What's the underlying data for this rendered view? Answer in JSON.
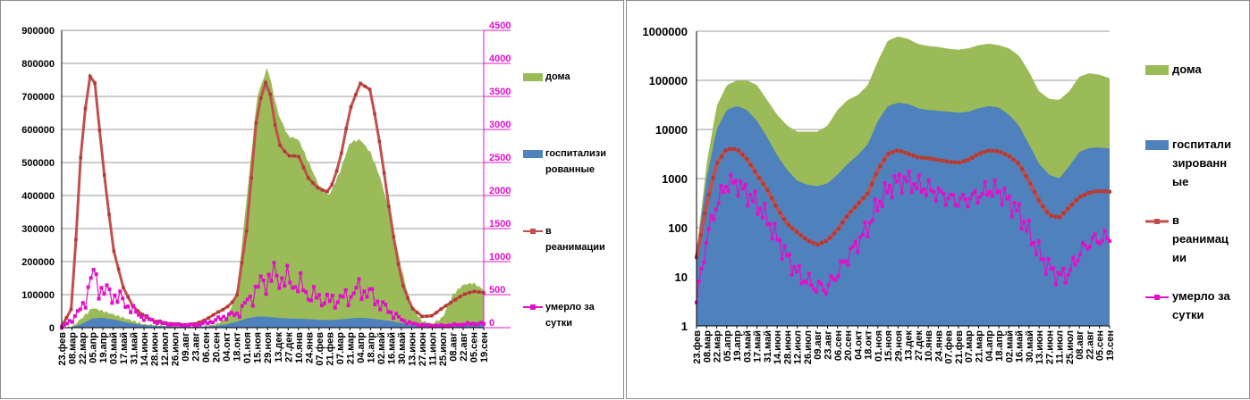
{
  "chart_data": [
    {
      "type": "area",
      "title": "",
      "x_labels": [
        "23.фев",
        "08.мар",
        "22.мар",
        "05.апр",
        "19.апр",
        "03.май",
        "17.май",
        "31.май",
        "14.июн",
        "28.июн",
        "12.июл",
        "26.июл",
        "09.авг",
        "23.авг",
        "06.сен",
        "20.сен",
        "04.окт",
        "18.окт",
        "01.ноя",
        "15.ноя",
        "29.ноя",
        "13.дек",
        "27.дек",
        "10.янв",
        "24.янв",
        "07.фев",
        "21.фев",
        "07.мар",
        "21.мар",
        "04.апр",
        "18.апр",
        "02.май",
        "16.май",
        "30.май",
        "13.июн",
        "27.июн",
        "11.июл",
        "25.июл",
        "08.авг",
        "22.авг",
        "05.сен",
        "19.сен"
      ],
      "left_axis": {
        "min": 0,
        "max": 900000,
        "ticks": [
          "0",
          "100000",
          "200000",
          "300000",
          "400000",
          "500000",
          "600000",
          "700000",
          "800000",
          "900000"
        ]
      },
      "right_axis": {
        "min": 0,
        "max": 4500,
        "ticks": [
          "0",
          "500",
          "1000",
          "1500",
          "2000",
          "2500",
          "3000",
          "3500",
          "4000",
          "4500"
        ]
      },
      "series": [
        {
          "name": "дома",
          "axis": "left",
          "color": "#9bbb59",
          "values": [
            0,
            2000,
            30000,
            60000,
            50000,
            40000,
            30000,
            20000,
            10000,
            8000,
            6000,
            5000,
            4000,
            4000,
            5000,
            10000,
            30000,
            100000,
            400000,
            700000,
            790000,
            650000,
            580000,
            570000,
            500000,
            430000,
            400000,
            470000,
            560000,
            570000,
            530000,
            450000,
            330000,
            180000,
            60000,
            20000,
            12000,
            30000,
            100000,
            130000,
            135000,
            115000
          ]
        },
        {
          "name": "госпитализированные",
          "axis": "left",
          "color": "#4f81bd",
          "values": [
            0,
            2000,
            12000,
            28000,
            30000,
            25000,
            18000,
            12000,
            8000,
            6000,
            4000,
            3000,
            2500,
            3000,
            4000,
            6000,
            10000,
            18000,
            28000,
            34000,
            33000,
            30000,
            28000,
            27000,
            26000,
            24000,
            23000,
            25000,
            28000,
            30000,
            28000,
            24000,
            20000,
            14000,
            8000,
            4000,
            3000,
            5000,
            10000,
            15000,
            17000,
            17000
          ]
        },
        {
          "name": "в реанимации",
          "axis": "right",
          "color": "#c0504d",
          "values": [
            20,
            300,
            3000,
            4050,
            2500,
            1200,
            600,
            300,
            180,
            100,
            70,
            55,
            45,
            60,
            120,
            220,
            300,
            450,
            1500,
            3300,
            3800,
            2800,
            2600,
            2600,
            2250,
            2100,
            2050,
            2500,
            3300,
            3700,
            3600,
            2700,
            1600,
            700,
            300,
            170,
            180,
            300,
            400,
            500,
            550,
            530
          ]
        },
        {
          "name": "умерло за сутки",
          "axis": "right",
          "color": "#e010c8",
          "values": [
            5,
            120,
            300,
            800,
            550,
            500,
            400,
            250,
            150,
            100,
            60,
            45,
            40,
            40,
            70,
            110,
            180,
            200,
            380,
            600,
            750,
            780,
            700,
            650,
            500,
            450,
            400,
            430,
            480,
            600,
            500,
            350,
            230,
            120,
            60,
            40,
            30,
            30,
            40,
            50,
            60,
            60
          ]
        }
      ],
      "legend": [
        "дома",
        "госпитали зи рованные",
        "в реанимации",
        "умерло за сутки"
      ]
    },
    {
      "type": "area",
      "scale": "log",
      "title": "",
      "x_labels": [
        "23.фев",
        "08.мар",
        "22.мар",
        "05.апр",
        "19.апр",
        "03.май",
        "17.май",
        "31.май",
        "14.июн",
        "28.июн",
        "12.июл",
        "26.июл",
        "09.авг",
        "23.авг",
        "06.сен",
        "20.сен",
        "04.окт",
        "18.окт",
        "01.ноя",
        "15.ноя",
        "29.ноя",
        "13.дек",
        "27.дек",
        "10.янв",
        "24.янв",
        "07.фев",
        "21.фев",
        "07.мар",
        "21.мар",
        "04.апр",
        "18.апр",
        "02.май",
        "16.май",
        "30.май",
        "13.июн",
        "27.июн",
        "11.июл",
        "25.июл",
        "08.авг",
        "22.авг",
        "05.сен",
        "19.сен"
      ],
      "y_axis": {
        "min": 1,
        "max": 1000000,
        "ticks": [
          "1",
          "10",
          "100",
          "1000",
          "10000",
          "100000",
          "1000000"
        ]
      },
      "series": [
        {
          "name": "дома",
          "color": "#9bbb59",
          "values": [
            30,
            2000,
            30000,
            80000,
            100000,
            100000,
            80000,
            40000,
            20000,
            12000,
            9000,
            9000,
            9000,
            12000,
            25000,
            40000,
            50000,
            80000,
            250000,
            650000,
            780000,
            700000,
            550000,
            500000,
            480000,
            440000,
            420000,
            450000,
            520000,
            560000,
            520000,
            450000,
            320000,
            150000,
            60000,
            42000,
            40000,
            60000,
            120000,
            140000,
            130000,
            110000
          ]
        },
        {
          "name": "госпитализированные",
          "color": "#4f81bd",
          "values": [
            30,
            1000,
            10000,
            25000,
            30000,
            25000,
            15000,
            7000,
            3000,
            1500,
            900,
            750,
            700,
            800,
            1200,
            2000,
            3000,
            5000,
            15000,
            30000,
            35000,
            33000,
            27000,
            25000,
            24000,
            23000,
            22000,
            23000,
            27000,
            30000,
            28000,
            20000,
            12000,
            5000,
            2000,
            1200,
            1000,
            1800,
            3500,
            4200,
            4300,
            4100
          ]
        },
        {
          "name": "в реанимации",
          "color": "#c0504d",
          "values": [
            25,
            300,
            2000,
            4000,
            4000,
            2500,
            1200,
            600,
            250,
            120,
            80,
            55,
            45,
            55,
            90,
            180,
            300,
            500,
            1500,
            3200,
            3800,
            3200,
            2700,
            2600,
            2400,
            2200,
            2100,
            2400,
            3200,
            3700,
            3600,
            2900,
            2000,
            900,
            350,
            180,
            160,
            260,
            420,
            520,
            560,
            540
          ]
        },
        {
          "name": "умерло за сутки",
          "color": "#e010c8",
          "values": [
            3,
            60,
            300,
            800,
            800,
            500,
            300,
            150,
            60,
            25,
            12,
            8,
            6,
            6,
            12,
            25,
            50,
            100,
            300,
            600,
            900,
            900,
            700,
            600,
            500,
            400,
            350,
            380,
            450,
            600,
            550,
            350,
            200,
            80,
            30,
            15,
            10,
            12,
            30,
            50,
            60,
            60
          ]
        }
      ],
      "legend": [
        "дома",
        "госпитали зированн ые",
        "в реанимац ии",
        "умерло за сутки"
      ]
    }
  ],
  "legend_left": {
    "item1": "дома",
    "item2_line1": "госпитализи",
    "item2_line2": "рованные",
    "item3_line1": "в",
    "item3_line2": "реанимации",
    "item4_line1": "умерло за",
    "item4_line2": "сутки"
  },
  "legend_right": {
    "item1": "дома",
    "item2_line1": "госпитали",
    "item2_line2": "зированн",
    "item2_line3": "ые",
    "item3_line1": "в",
    "item3_line2": "реанимац",
    "item3_line3": "ии",
    "item4_line1": "умерло за",
    "item4_line2": "сутки"
  },
  "colors": {
    "green": "#9bbb59",
    "blue": "#4f81bd",
    "red": "#c0504d",
    "magenta": "#e010c8"
  }
}
